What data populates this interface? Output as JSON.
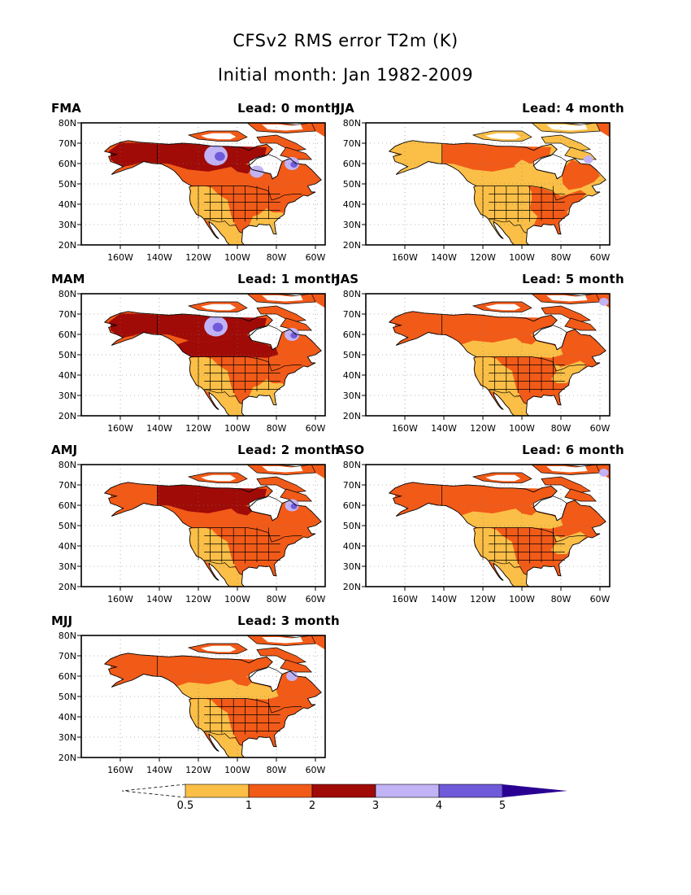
{
  "figure": {
    "title_line1": "CFSv2 RMS error T2m (K)",
    "title_line2": "Initial month: Jan 1982-2009"
  },
  "axes": {
    "lat_labels": [
      "80N",
      "70N",
      "60N",
      "50N",
      "40N",
      "30N",
      "20N"
    ],
    "lon_labels": [
      "160W",
      "140W",
      "120W",
      "100W",
      "80W",
      "60W"
    ],
    "lat_range": [
      20,
      80
    ],
    "lon_range": [
      -180,
      -55
    ],
    "grid": "dotted"
  },
  "panels": [
    {
      "season": "FMA",
      "lead_label": "Lead: 0 month",
      "dominant_class": "2-3"
    },
    {
      "season": "MAM",
      "lead_label": "Lead: 1 month",
      "dominant_class": "2-3"
    },
    {
      "season": "AMJ",
      "lead_label": "Lead: 2 month",
      "dominant_class": "1-2"
    },
    {
      "season": "MJJ",
      "lead_label": "Lead: 3 month",
      "dominant_class": "1-2"
    },
    {
      "season": "JJA",
      "lead_label": "Lead: 4 month",
      "dominant_class": "0.5-1"
    },
    {
      "season": "JAS",
      "lead_label": "Lead: 5 month",
      "dominant_class": "1-2"
    },
    {
      "season": "ASO",
      "lead_label": "Lead: 6 month",
      "dominant_class": "1-2"
    }
  ],
  "colorbar": {
    "labels": [
      "0.5",
      "1",
      "2",
      "3",
      "4",
      "5"
    ],
    "colors": [
      "#fbbf47",
      "#f25a18",
      "#a00b07",
      "#c1b3f5",
      "#6f5ad9",
      "#2a0093"
    ]
  },
  "palette": {
    "ocean": "#ffffff",
    "ice": "#ffffff",
    "c_05_1": "#fbbf47",
    "c_1_2": "#f25a18",
    "c_2_3": "#a00b07",
    "c_3_4": "#c1b3f5",
    "c_4_5": "#6f5ad9",
    "c_5p": "#2a0093"
  }
}
